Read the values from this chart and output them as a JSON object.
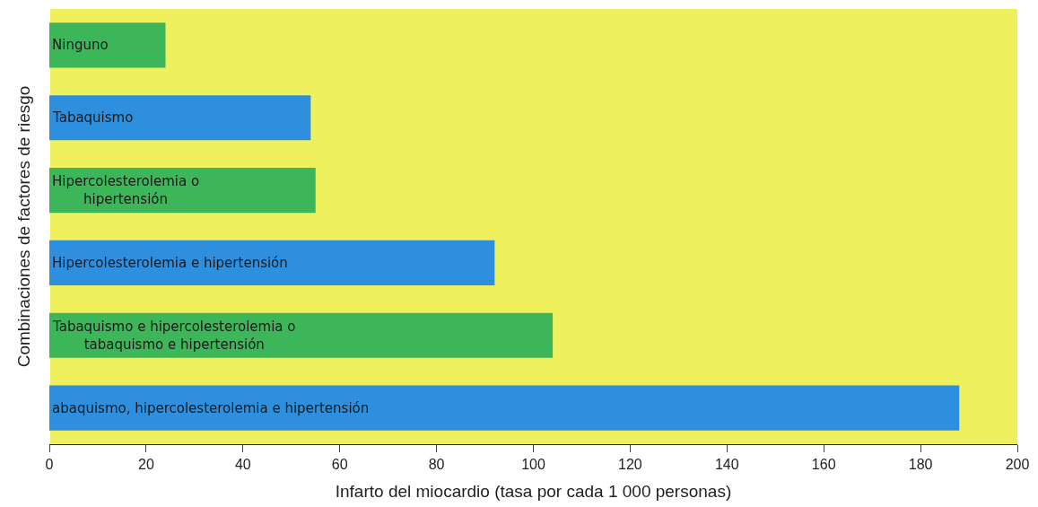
{
  "chart_data": {
    "type": "bar",
    "orientation": "horizontal",
    "xlabel": "Infarto del miocardio (tasa por cada 1 000 personas)",
    "ylabel": "Combinaciones de factores de riesgo",
    "categories": [
      "Ninguno",
      "Tabaquismo",
      "Hipercolesterolemia o\nhipertensión",
      "Hipercolesterolemia e hipertensión",
      "Tabaquismo e hipercolesterolemia o\ntabaquismo e hipertensión",
      "abaquismo, hipercolesterolemia e hipertensión"
    ],
    "values": [
      24,
      54,
      55,
      92,
      104,
      188
    ],
    "colors": [
      "#3db65a",
      "#2f8fdf",
      "#3db65a",
      "#2f8fdf",
      "#3db65a",
      "#2f8fdf"
    ],
    "xlim": [
      0,
      200
    ],
    "xticks": [
      0,
      20,
      40,
      60,
      80,
      100,
      120,
      140,
      160,
      180,
      200
    ],
    "grid": false,
    "tick_labels": "x"
  }
}
